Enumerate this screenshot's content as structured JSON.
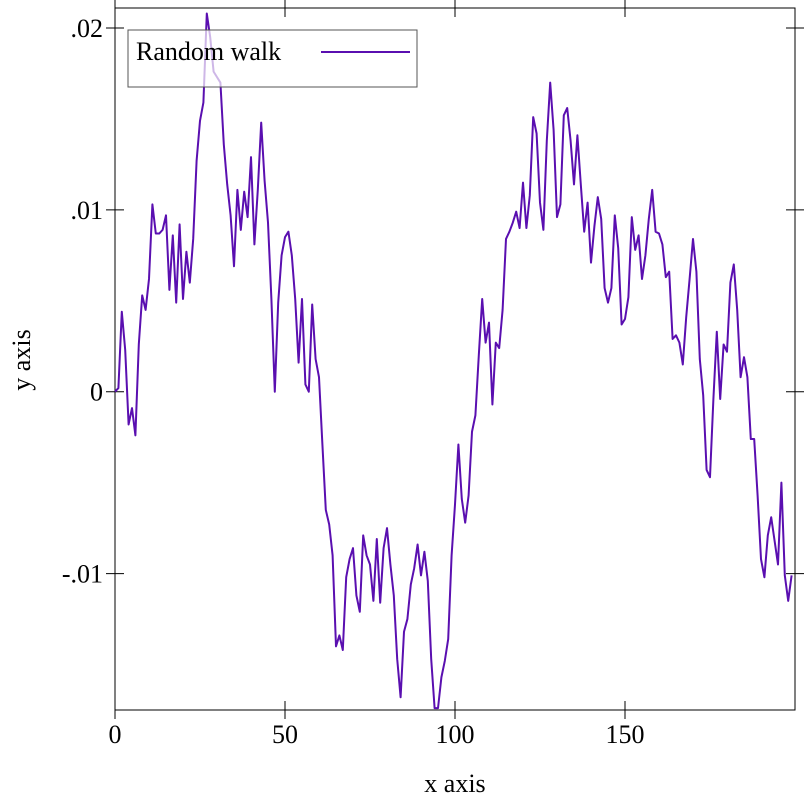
{
  "chart_data": {
    "type": "line",
    "xlabel": "x axis",
    "ylabel": "y axis",
    "x": [
      0,
      1,
      2,
      3,
      4,
      5,
      6,
      7,
      8,
      9,
      10,
      11,
      12,
      13,
      14,
      15,
      16,
      17,
      18,
      19,
      20,
      21,
      22,
      23,
      24,
      25,
      26,
      27,
      28,
      29,
      30,
      31,
      32,
      33,
      34,
      35,
      36,
      37,
      38,
      39,
      40,
      41,
      42,
      43,
      44,
      45,
      46,
      47,
      48,
      49,
      50,
      51,
      52,
      53,
      54,
      55,
      56,
      57,
      58,
      59,
      60,
      61,
      62,
      63,
      64,
      65,
      66,
      67,
      68,
      69,
      70,
      71,
      72,
      73,
      74,
      75,
      76,
      77,
      78,
      79,
      80,
      81,
      82,
      83,
      84,
      85,
      86,
      87,
      88,
      89,
      90,
      91,
      92,
      93,
      94,
      95,
      96,
      97,
      98,
      99,
      100,
      101,
      102,
      103,
      104,
      105,
      106,
      107,
      108,
      109,
      110,
      111,
      112,
      113,
      114,
      115,
      116,
      117,
      118,
      119,
      120,
      121,
      122,
      123,
      124,
      125,
      126,
      127,
      128,
      129,
      130,
      131,
      132,
      133,
      134,
      135,
      136,
      137,
      138,
      139,
      140,
      141,
      142,
      143,
      144,
      145,
      146,
      147,
      148,
      149,
      150,
      151,
      152,
      153,
      154,
      155,
      156,
      157,
      158,
      159,
      160,
      161,
      162,
      163,
      164,
      165,
      166,
      167,
      168,
      169,
      170,
      171,
      172,
      173,
      174,
      175,
      176,
      177,
      178,
      179,
      180,
      181,
      182,
      183,
      184,
      185,
      186,
      187,
      188,
      189,
      190,
      191,
      192,
      193,
      194,
      195,
      196,
      197,
      198,
      199
    ],
    "series": [
      {
        "name": "Random walk",
        "color": "#5a0fb0",
        "values": [
          0,
          0.0002,
          0.0044,
          0.0023,
          -0.0018,
          -0.0009,
          -0.0024,
          0.0026,
          0.0053,
          0.0045,
          0.0062,
          0.0103,
          0.0087,
          0.0087,
          0.0089,
          0.0097,
          0.0056,
          0.0086,
          0.0049,
          0.0092,
          0.0051,
          0.0077,
          0.006,
          0.0084,
          0.0127,
          0.0149,
          0.0159,
          0.0208,
          0.0195,
          0.0176,
          0.0173,
          0.017,
          0.0136,
          0.0114,
          0.0097,
          0.0069,
          0.0111,
          0.0089,
          0.011,
          0.0096,
          0.0129,
          0.0081,
          0.0111,
          0.0148,
          0.0116,
          0.0093,
          0.0051,
          0,
          0.0049,
          0.0075,
          0.0085,
          0.0088,
          0.0075,
          0.0051,
          0.0016,
          0.0051,
          0.0004,
          0,
          0.0048,
          0.0018,
          0.0008,
          -0.0029,
          -0.0065,
          -0.0073,
          -0.009,
          -0.014,
          -0.0134,
          -0.0142,
          -0.0102,
          -0.0092,
          -0.0086,
          -0.0112,
          -0.0121,
          -0.0079,
          -0.009,
          -0.0095,
          -0.0115,
          -0.0081,
          -0.0116,
          -0.0086,
          -0.0075,
          -0.0095,
          -0.0112,
          -0.0147,
          -0.0168,
          -0.0132,
          -0.0125,
          -0.0106,
          -0.0097,
          -0.0084,
          -0.0101,
          -0.0088,
          -0.0104,
          -0.0147,
          -0.0174,
          -0.0174,
          -0.0157,
          -0.0148,
          -0.0136,
          -0.009,
          -0.0062,
          -0.0029,
          -0.0059,
          -0.0072,
          -0.0057,
          -0.0022,
          -0.0013,
          0.002,
          0.0051,
          0.0027,
          0.0038,
          -0.0007,
          0.0027,
          0.0024,
          0.0045,
          0.0084,
          0.0088,
          0.0093,
          0.0099,
          0.009,
          0.0115,
          0.009,
          0.0108,
          0.0151,
          0.0142,
          0.0104,
          0.0089,
          0.0138,
          0.017,
          0.0144,
          0.0096,
          0.0103,
          0.0152,
          0.0156,
          0.0138,
          0.0114,
          0.0141,
          0.0114,
          0.0088,
          0.0104,
          0.0071,
          0.0091,
          0.0107,
          0.0095,
          0.0057,
          0.0049,
          0.0057,
          0.0097,
          0.0079,
          0.0037,
          0.004,
          0.0052,
          0.0096,
          0.0078,
          0.0086,
          0.0062,
          0.0075,
          0.0095,
          0.0111,
          0.0088,
          0.0087,
          0.0081,
          0.0063,
          0.0066,
          0.0029,
          0.0031,
          0.0027,
          0.0015,
          0.0041,
          0.0062,
          0.0084,
          0.0066,
          0.0018,
          -0.0002,
          -0.0043,
          -0.0047,
          -0.0004,
          0.0033,
          -0.0004,
          0.0026,
          0.0022,
          0.006,
          0.007,
          0.0045,
          0.0008,
          0.0019,
          0.0008,
          -0.0026,
          -0.0026,
          -0.0057,
          -0.0092,
          -0.0102,
          -0.0079,
          -0.0069,
          -0.0082,
          -0.0095,
          -0.005,
          -0.0101,
          -0.0115,
          -0.0101
        ]
      }
    ],
    "xlim": [
      0,
      200
    ],
    "xticks": [
      0,
      50,
      100,
      150
    ],
    "ylim": [
      -0.0175,
      0.0211
    ],
    "yticks": [
      {
        "value": -0.01,
        "label": "-.01"
      },
      0,
      {
        "value": 0.01,
        "label": ".01"
      },
      {
        "value": 0.02,
        "label": ".02"
      }
    ],
    "legend": "top-left"
  }
}
